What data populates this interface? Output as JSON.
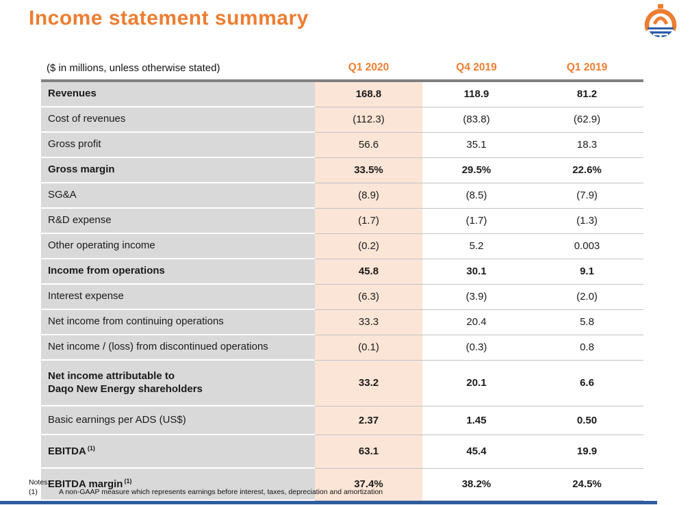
{
  "page": {
    "title": "Income statement summary"
  },
  "logo": {
    "name": "daqo-new-energy-logo",
    "orange": "#ED7D31",
    "blue": "#2A5CAA"
  },
  "table": {
    "unit_note": "($ in millions, unless otherwise stated)",
    "columns": [
      "Q1 2020",
      "Q4 2019",
      "Q1 2019"
    ],
    "rows": [
      {
        "label": "Revenues",
        "label_bold": true,
        "values_bold": true,
        "values": [
          "168.8",
          "118.9",
          "81.2"
        ]
      },
      {
        "label": "Cost of revenues",
        "label_bold": false,
        "values_bold": false,
        "values": [
          "(112.3)",
          "(83.8)",
          "(62.9)"
        ]
      },
      {
        "label": "Gross profit",
        "label_bold": false,
        "values_bold": false,
        "values": [
          "56.6",
          "35.1",
          "18.3"
        ]
      },
      {
        "label": "Gross margin",
        "label_bold": true,
        "values_bold": true,
        "values": [
          "33.5%",
          "29.5%",
          "22.6%"
        ]
      },
      {
        "label": "SG&A",
        "label_bold": false,
        "values_bold": false,
        "values": [
          "(8.9)",
          "(8.5)",
          "(7.9)"
        ]
      },
      {
        "label": "R&D expense",
        "label_bold": false,
        "values_bold": false,
        "values": [
          "(1.7)",
          "(1.7)",
          "(1.3)"
        ]
      },
      {
        "label": "Other operating income",
        "label_bold": false,
        "values_bold": false,
        "values": [
          "(0.2)",
          "5.2",
          "0.003"
        ]
      },
      {
        "label": "Income from operations",
        "label_bold": true,
        "values_bold": true,
        "values": [
          "45.8",
          "30.1",
          "9.1"
        ]
      },
      {
        "label": "Interest expense",
        "label_bold": false,
        "values_bold": false,
        "values": [
          "(6.3)",
          "(3.9)",
          "(2.0)"
        ]
      },
      {
        "label": "Net income from continuing operations",
        "label_bold": false,
        "values_bold": false,
        "values": [
          "33.3",
          "20.4",
          "5.8"
        ]
      },
      {
        "label": "Net income / (loss) from discontinued operations",
        "label_bold": false,
        "values_bold": false,
        "values": [
          "(0.1)",
          "(0.3)",
          "0.8"
        ]
      },
      {
        "label": "Net income attributable to\nDaqo New Energy shareholders",
        "label_bold": true,
        "values_bold": true,
        "values": [
          "33.2",
          "20.1",
          "6.6"
        ]
      },
      {
        "label": "Basic earnings per ADS (US$)",
        "label_bold": false,
        "values_bold": true,
        "values": [
          "2.37",
          "1.45",
          "0.50"
        ]
      },
      {
        "label": "EBITDA",
        "sup": "(1)",
        "label_bold": true,
        "values_bold": true,
        "values": [
          "63.1",
          "45.4",
          "19.9"
        ]
      },
      {
        "label": "EBITDA margin",
        "sup": "(1)",
        "label_bold": true,
        "values_bold": true,
        "values": [
          "37.4%",
          "38.2%",
          "24.5%"
        ]
      }
    ]
  },
  "notes": {
    "heading": "Notes:",
    "items": [
      {
        "marker": "(1)",
        "text": "A non-GAAP measure which represents earnings before interest, taxes, depreciation and amortization"
      }
    ]
  },
  "colors": {
    "accent_orange": "#ED7D31",
    "highlight_column_bg": "#FBE5D6",
    "label_column_bg": "#D9D9D9",
    "header_rule_gray": "#808080",
    "footer_bar_blue": "#2E5B9F"
  }
}
